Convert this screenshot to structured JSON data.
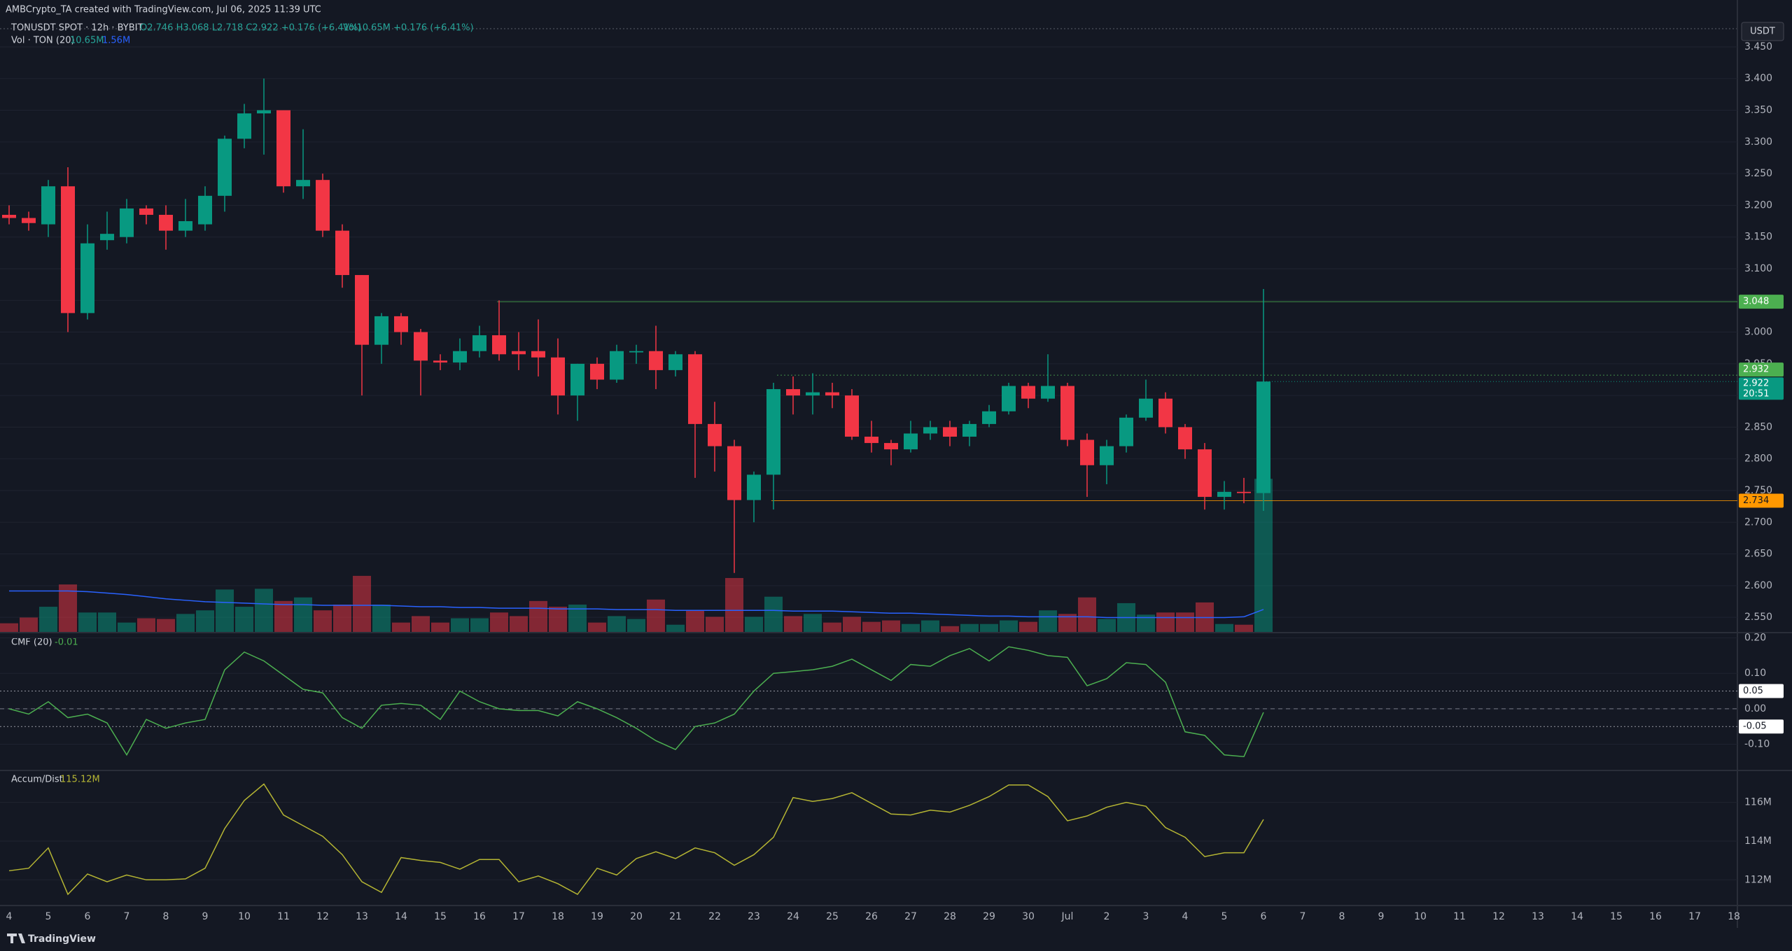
{
  "header": {
    "title": "AMBCrypto_TA created with TradingView.com, Jul 06, 2025 11:39 UTC",
    "symbol": "TONUSDT SPOT · 12h · BYBIT",
    "ohlc": "O2.746 H3.068 L2.718 C2.922 +0.176 (+6.41%)",
    "vol": "Vol10.65M +0.176 (+6.41%)",
    "currency": "USDT",
    "footer": "TradingView"
  },
  "chart_data": [
    {
      "type": "candlestick",
      "categories": [
        "4",
        null,
        "5",
        null,
        "6",
        null,
        "7",
        null,
        "8",
        null,
        "9",
        null,
        "10",
        null,
        "11",
        null,
        "12",
        null,
        "13",
        null,
        "14",
        null,
        "15",
        null,
        "16",
        null,
        "17",
        null,
        "18",
        null,
        "19",
        null,
        "20",
        null,
        "21",
        null,
        "22",
        null,
        "23",
        null,
        "24",
        null,
        "25",
        null,
        "26",
        null,
        "27",
        null,
        "28",
        null,
        "29",
        null,
        "30",
        null,
        "Jul",
        null,
        "2",
        null,
        "3",
        null,
        "4",
        null,
        "5",
        null,
        "6",
        null,
        "7",
        null,
        "8",
        null,
        "9",
        null,
        "10",
        null,
        "11",
        null,
        "12",
        null,
        "13",
        null,
        "14",
        null,
        "15",
        null,
        "16",
        null,
        "17",
        null,
        "18"
      ],
      "open": [
        3.185,
        3.18,
        3.17,
        3.23,
        3.03,
        3.145,
        3.15,
        3.195,
        3.185,
        3.16,
        3.17,
        3.215,
        3.305,
        3.345,
        3.35,
        3.23,
        3.24,
        3.16,
        3.09,
        2.98,
        3.025,
        3.0,
        2.955,
        2.952,
        2.97,
        2.995,
        2.97,
        2.97,
        2.96,
        2.9,
        2.95,
        2.925,
        2.968,
        2.97,
        2.94,
        2.965,
        2.855,
        2.82,
        2.735,
        2.775,
        2.91,
        2.9,
        2.905,
        2.9,
        2.835,
        2.825,
        2.815,
        2.84,
        2.85,
        2.835,
        2.855,
        2.875,
        2.915,
        2.895,
        2.915,
        2.83,
        2.79,
        2.82,
        2.865,
        2.895,
        2.85,
        2.815,
        2.74,
        2.748,
        2.746,
        null,
        null,
        null,
        null,
        null,
        null,
        null,
        null,
        null,
        null,
        null,
        null,
        null,
        null,
        null,
        null,
        null,
        null,
        null,
        null,
        null,
        null,
        null,
        null
      ],
      "high": [
        3.2,
        3.19,
        3.24,
        3.26,
        3.17,
        3.19,
        3.21,
        3.2,
        3.2,
        3.21,
        3.23,
        3.31,
        3.36,
        3.4,
        3.35,
        3.32,
        3.25,
        3.17,
        3.09,
        3.03,
        3.03,
        3.005,
        2.965,
        2.99,
        3.01,
        3.05,
        3.0,
        3.02,
        2.99,
        2.95,
        2.96,
        2.98,
        2.98,
        3.01,
        2.97,
        2.97,
        2.89,
        2.83,
        2.78,
        2.92,
        2.93,
        2.935,
        2.92,
        2.91,
        2.86,
        2.83,
        2.86,
        2.86,
        2.86,
        2.86,
        2.885,
        2.92,
        2.92,
        2.965,
        2.92,
        2.84,
        2.83,
        2.87,
        2.925,
        2.905,
        2.855,
        2.825,
        2.765,
        2.77,
        3.068,
        null,
        null,
        null,
        null,
        null,
        null,
        null,
        null,
        null,
        null,
        null,
        null,
        null,
        null,
        null,
        null,
        null,
        null,
        null,
        null,
        null,
        null,
        null,
        null
      ],
      "low": [
        3.17,
        3.16,
        3.15,
        3.0,
        3.02,
        3.13,
        3.14,
        3.17,
        3.13,
        3.15,
        3.16,
        3.19,
        3.29,
        3.28,
        3.22,
        3.21,
        3.15,
        3.07,
        2.9,
        2.95,
        2.98,
        2.9,
        2.94,
        2.94,
        2.96,
        2.955,
        2.94,
        2.93,
        2.87,
        2.86,
        2.91,
        2.92,
        2.95,
        2.91,
        2.93,
        2.77,
        2.78,
        2.62,
        2.7,
        2.72,
        2.87,
        2.87,
        2.88,
        2.83,
        2.81,
        2.79,
        2.81,
        2.83,
        2.82,
        2.82,
        2.85,
        2.87,
        2.88,
        2.89,
        2.82,
        2.74,
        2.76,
        2.81,
        2.86,
        2.84,
        2.8,
        2.72,
        2.72,
        2.73,
        2.718,
        null,
        null,
        null,
        null,
        null,
        null,
        null,
        null,
        null,
        null,
        null,
        null,
        null,
        null,
        null,
        null,
        null,
        null,
        null,
        null,
        null,
        null,
        null,
        null
      ],
      "close": [
        3.18,
        3.172,
        3.23,
        3.03,
        3.14,
        3.155,
        3.195,
        3.185,
        3.16,
        3.175,
        3.215,
        3.305,
        3.345,
        3.35,
        3.23,
        3.24,
        3.16,
        3.09,
        2.98,
        3.025,
        3.0,
        2.955,
        2.952,
        2.97,
        2.995,
        2.965,
        2.965,
        2.96,
        2.9,
        2.95,
        2.925,
        2.97,
        2.97,
        2.94,
        2.965,
        2.855,
        2.82,
        2.735,
        2.775,
        2.91,
        2.9,
        2.905,
        2.9,
        2.835,
        2.825,
        2.815,
        2.84,
        2.85,
        2.835,
        2.855,
        2.875,
        2.915,
        2.895,
        2.915,
        2.83,
        2.79,
        2.82,
        2.865,
        2.895,
        2.85,
        2.815,
        2.74,
        2.748,
        2.746,
        2.922,
        null,
        null,
        null,
        null,
        null,
        null,
        null,
        null,
        null,
        null,
        null,
        null,
        null,
        null,
        null,
        null,
        null,
        null,
        null,
        null,
        null,
        null,
        null,
        null
      ],
      "volume": [
        0.6,
        1.0,
        1.75,
        3.3,
        1.35,
        1.35,
        0.65,
        0.95,
        0.9,
        1.25,
        1.5,
        2.95,
        1.75,
        3.0,
        2.15,
        2.4,
        1.5,
        1.9,
        3.9,
        1.9,
        0.65,
        1.1,
        0.65,
        0.95,
        0.95,
        1.35,
        1.1,
        2.15,
        1.75,
        1.9,
        0.65,
        1.1,
        0.9,
        2.25,
        0.5,
        1.5,
        1.05,
        3.75,
        1.05,
        2.45,
        1.1,
        1.25,
        0.65,
        1.05,
        0.7,
        0.8,
        0.55,
        0.8,
        0.4,
        0.55,
        0.55,
        0.8,
        0.7,
        1.5,
        1.25,
        2.4,
        0.9,
        2.0,
        1.2,
        1.35,
        1.35,
        2.05,
        0.55,
        0.5,
        10.65,
        null,
        null,
        null,
        null,
        null,
        null,
        null,
        null,
        null,
        null,
        null,
        null,
        null,
        null,
        null,
        null,
        null,
        null,
        null,
        null,
        null,
        null,
        null,
        null
      ],
      "volume_ma": [
        2.85,
        2.85,
        2.85,
        2.85,
        2.8,
        2.7,
        2.6,
        2.45,
        2.3,
        2.2,
        2.1,
        2.05,
        2.0,
        1.95,
        1.9,
        1.9,
        1.85,
        1.85,
        1.85,
        1.85,
        1.8,
        1.75,
        1.75,
        1.7,
        1.7,
        1.65,
        1.65,
        1.65,
        1.6,
        1.6,
        1.6,
        1.55,
        1.55,
        1.55,
        1.5,
        1.5,
        1.5,
        1.5,
        1.5,
        1.5,
        1.45,
        1.45,
        1.45,
        1.4,
        1.35,
        1.3,
        1.3,
        1.25,
        1.2,
        1.15,
        1.1,
        1.1,
        1.05,
        1.05,
        1.05,
        1.05,
        1.0,
        1.0,
        1.0,
        1.0,
        1.0,
        1.0,
        1.0,
        1.05,
        1.56,
        null,
        null,
        null,
        null,
        null,
        null,
        null,
        null,
        null,
        null,
        null,
        null,
        null,
        null,
        null,
        null,
        null,
        null,
        null,
        null,
        null,
        null,
        null,
        null
      ],
      "volume_legend": {
        "name": "Vol · TON (20)",
        "value": "10.65M",
        "ma": "1.56M"
      },
      "up_color": "#089981",
      "down_color": "#f23645",
      "ma_color": "#2962ff",
      "ylim": [
        2.527,
        3.493
      ],
      "volume_ylim": [
        0,
        42.6
      ],
      "yticks": [
        {
          "value": 2.55,
          "label": "2.550"
        },
        {
          "value": 2.6,
          "label": "2.600"
        },
        {
          "value": 2.65,
          "label": "2.650"
        },
        {
          "value": 2.7,
          "label": "2.700"
        },
        {
          "value": 2.75,
          "label": "2.750"
        },
        {
          "value": 2.8,
          "label": "2.800"
        },
        {
          "value": 2.85,
          "label": "2.850"
        },
        {
          "value": 2.9,
          "label": "2.900"
        },
        {
          "value": 2.95,
          "label": "2.950"
        },
        {
          "value": 3.0,
          "label": "3.000"
        },
        {
          "value": 3.05,
          "label": "3.050"
        },
        {
          "value": 3.1,
          "label": "3.100"
        },
        {
          "value": 3.15,
          "label": "3.150"
        },
        {
          "value": 3.2,
          "label": "3.200"
        },
        {
          "value": 3.25,
          "label": "3.250"
        },
        {
          "value": 3.3,
          "label": "3.300"
        },
        {
          "value": 3.35,
          "label": "3.350"
        },
        {
          "value": 3.4,
          "label": "3.400"
        },
        {
          "value": 3.45,
          "label": "3.450"
        }
      ],
      "levels": [
        {
          "value": 3.048,
          "color": "#4caf50"
        },
        {
          "value": 2.932,
          "color": "#4caf50"
        },
        {
          "value": 2.734,
          "color": "#ff9800"
        }
      ],
      "last_price": {
        "value": 2.922,
        "countdown": "20:51",
        "color": "#089981"
      },
      "grid": true
    },
    {
      "type": "line",
      "legend": {
        "name": "CMF (20)",
        "value": "-0.01"
      },
      "color": "#4caf50",
      "values": [
        0.0,
        -0.015,
        0.02,
        -0.025,
        -0.015,
        -0.04,
        -0.13,
        -0.03,
        -0.055,
        -0.04,
        -0.03,
        0.11,
        0.16,
        0.135,
        0.095,
        0.055,
        0.045,
        -0.025,
        -0.055,
        0.01,
        0.015,
        0.01,
        -0.03,
        0.05,
        0.02,
        0.0,
        -0.005,
        -0.005,
        -0.02,
        0.02,
        0.0,
        -0.025,
        -0.055,
        -0.09,
        -0.115,
        -0.05,
        -0.04,
        -0.015,
        0.05,
        0.1,
        0.105,
        0.11,
        0.12,
        0.14,
        0.11,
        0.08,
        0.125,
        0.12,
        0.15,
        0.17,
        0.135,
        0.175,
        0.165,
        0.15,
        0.145,
        0.065,
        0.085,
        0.13,
        0.125,
        0.075,
        -0.065,
        -0.075,
        -0.13,
        -0.135,
        -0.01,
        null,
        null,
        null,
        null,
        null,
        null,
        null,
        null,
        null,
        null,
        null,
        null,
        null,
        null,
        null,
        null,
        null,
        null,
        null,
        null,
        null,
        null,
        null,
        null
      ],
      "ylim": [
        -0.174,
        0.213
      ],
      "yticks": [
        {
          "value": 0.2,
          "label": "0.20"
        },
        {
          "value": 0.1,
          "label": "0.10"
        },
        {
          "value": 0.0,
          "label": "0.00"
        },
        {
          "value": -0.1,
          "label": "-0.10"
        }
      ],
      "levels": [
        0.05,
        -0.05
      ],
      "grid": true
    },
    {
      "type": "line",
      "legend": {
        "name": "Accum/Dist",
        "value": "115.12M"
      },
      "color": "#b5b533",
      "values": [
        112.47,
        112.6,
        113.65,
        111.25,
        112.3,
        111.9,
        112.25,
        112.0,
        112.0,
        112.05,
        112.6,
        114.65,
        116.1,
        116.95,
        115.35,
        114.8,
        114.25,
        113.3,
        111.9,
        111.35,
        113.15,
        113.0,
        112.9,
        112.55,
        113.05,
        113.05,
        111.9,
        112.2,
        111.8,
        111.25,
        112.6,
        112.25,
        113.1,
        113.45,
        113.1,
        113.65,
        113.4,
        112.75,
        113.3,
        114.2,
        116.25,
        116.05,
        116.2,
        116.5,
        115.95,
        115.4,
        115.35,
        115.6,
        115.5,
        115.85,
        116.3,
        116.9,
        116.9,
        116.3,
        115.05,
        115.3,
        115.75,
        116.0,
        115.8,
        114.7,
        114.2,
        113.2,
        113.4,
        113.4,
        115.12,
        null,
        null,
        null,
        null,
        null,
        null,
        null,
        null,
        null,
        null,
        null,
        null,
        null,
        null,
        null,
        null,
        null,
        null,
        null,
        null,
        null,
        null,
        null,
        null
      ],
      "ylim": [
        110.71,
        117.65
      ],
      "yticks": [
        {
          "value": 112,
          "label": "112M"
        },
        {
          "value": 114,
          "label": "114M"
        },
        {
          "value": 116,
          "label": "116M"
        }
      ],
      "grid": true
    }
  ]
}
